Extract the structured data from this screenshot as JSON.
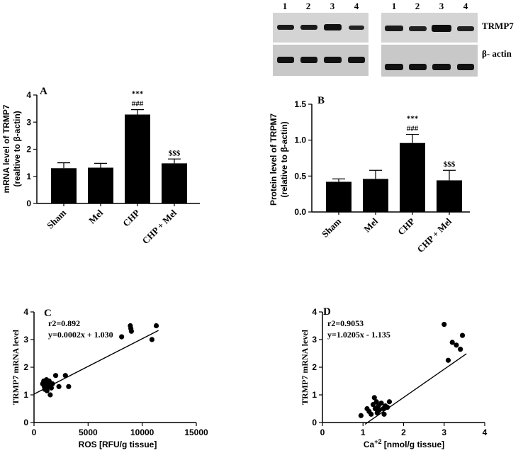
{
  "gel_panel": {
    "lanes_left": [
      "1",
      "2",
      "3",
      "4"
    ],
    "lanes_right": [
      "1",
      "2",
      "3",
      "4"
    ],
    "row_labels": [
      "TRMP7",
      "β- actin"
    ]
  },
  "chart_data": [
    {
      "id": "A",
      "type": "bar",
      "panel_label": "A",
      "categories": [
        "Sham",
        "Mel",
        "CHP",
        "CHP + Mel"
      ],
      "values": [
        1.3,
        1.32,
        3.28,
        1.48
      ],
      "errors": [
        0.2,
        0.16,
        0.18,
        0.16
      ],
      "annotations": [
        [],
        [],
        [
          "***",
          "###"
        ],
        [
          "$$$"
        ]
      ],
      "ylabel_line1": "mRNA level of TRMP7",
      "ylabel_line2": "(realtive to β-actin)",
      "ylim": [
        0,
        4
      ],
      "yticks": [
        "0",
        "1",
        "2",
        "3",
        "4"
      ]
    },
    {
      "id": "B",
      "type": "bar",
      "panel_label": "B",
      "categories": [
        "Sham",
        "Mel",
        "CHP",
        "CHP + Mel"
      ],
      "values": [
        0.42,
        0.46,
        0.96,
        0.44
      ],
      "errors": [
        0.04,
        0.12,
        0.12,
        0.14
      ],
      "annotations": [
        [],
        [],
        [
          "***",
          "###"
        ],
        [
          "$$$"
        ]
      ],
      "ylabel_line1": "Protein level of TRPM7",
      "ylabel_line2": "(relative to β-actin)",
      "ylim": [
        0,
        1.5
      ],
      "yticks": [
        "0.0",
        "0.5",
        "1.0",
        "1.5"
      ]
    },
    {
      "id": "C",
      "type": "scatter",
      "panel_label": "C",
      "xlabel": "ROS [RFU/g tissue]",
      "ylabel": "TRMP7 mRNA level",
      "stats_line1": "r2=0.892",
      "stats_line2": "y=0.0002x + 1.030",
      "xlim": [
        0,
        15000
      ],
      "ylim": [
        0,
        4
      ],
      "xticks": [
        "0",
        "5000",
        "10000",
        "15000"
      ],
      "yticks": [
        "0",
        "1",
        "2",
        "3",
        "4"
      ],
      "fit": {
        "slope": 0.0002,
        "intercept": 1.03,
        "x_range": [
          0,
          11500
        ]
      },
      "points": [
        [
          800,
          1.4
        ],
        [
          900,
          1.5
        ],
        [
          950,
          1.3
        ],
        [
          1000,
          1.2
        ],
        [
          1050,
          1.45
        ],
        [
          1100,
          1.35
        ],
        [
          1150,
          1.55
        ],
        [
          1200,
          1.15
        ],
        [
          1250,
          1.4
        ],
        [
          1300,
          1.3
        ],
        [
          1400,
          1.5
        ],
        [
          1500,
          1.0
        ],
        [
          1600,
          1.25
        ],
        [
          1700,
          1.4
        ],
        [
          2000,
          1.7
        ],
        [
          2300,
          1.3
        ],
        [
          2900,
          1.7
        ],
        [
          3200,
          1.3
        ],
        [
          8100,
          3.1
        ],
        [
          8900,
          3.5
        ],
        [
          8950,
          3.4
        ],
        [
          9000,
          3.3
        ],
        [
          10900,
          3.0
        ],
        [
          11300,
          3.5
        ]
      ]
    },
    {
      "id": "D",
      "type": "scatter",
      "panel_label": "D",
      "xlabel_pre": "Ca",
      "xlabel_sup": "+2",
      "xlabel_post": " [nmol/g tissue]",
      "ylabel": "TRMP7 mRNA level",
      "stats_line1": "r2=0.9053",
      "stats_line2": "y=1.0205x - 1.135",
      "xlim": [
        0,
        4
      ],
      "ylim": [
        0,
        4
      ],
      "xticks": [
        "0",
        "1",
        "2",
        "3",
        "4"
      ],
      "yticks": [
        "0",
        "1",
        "2",
        "3",
        "4"
      ],
      "fit": {
        "slope": 1.0205,
        "intercept": -1.135,
        "x_range": [
          1.05,
          3.55
        ]
      },
      "points": [
        [
          0.95,
          0.25
        ],
        [
          1.1,
          0.5
        ],
        [
          1.15,
          0.4
        ],
        [
          1.2,
          0.3
        ],
        [
          1.25,
          0.65
        ],
        [
          1.28,
          0.9
        ],
        [
          1.3,
          0.5
        ],
        [
          1.33,
          0.75
        ],
        [
          1.35,
          0.35
        ],
        [
          1.38,
          0.6
        ],
        [
          1.4,
          0.45
        ],
        [
          1.45,
          0.7
        ],
        [
          1.5,
          0.5
        ],
        [
          1.52,
          0.3
        ],
        [
          1.55,
          0.6
        ],
        [
          1.6,
          0.55
        ],
        [
          1.65,
          0.75
        ],
        [
          3.0,
          3.55
        ],
        [
          3.1,
          2.25
        ],
        [
          3.2,
          2.9
        ],
        [
          3.3,
          2.8
        ],
        [
          3.4,
          2.65
        ],
        [
          3.45,
          3.15
        ]
      ]
    }
  ]
}
